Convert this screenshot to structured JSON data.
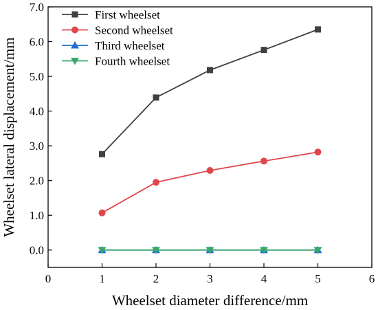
{
  "chart_data": {
    "type": "line",
    "title": "",
    "xlabel": "Wheelset diameter difference/mm",
    "ylabel": "Wheelset lateral displacement/mm",
    "xlim": [
      0,
      6
    ],
    "ylim": [
      -0.5,
      7.0
    ],
    "x_ticks": [
      0,
      1,
      2,
      3,
      4,
      5,
      6
    ],
    "x_tick_labels": [
      "0",
      "1",
      "2",
      "3",
      "4",
      "5",
      "6"
    ],
    "y_ticks": [
      0.0,
      1.0,
      2.0,
      3.0,
      4.0,
      5.0,
      6.0,
      7.0
    ],
    "y_tick_labels": [
      "0.0",
      "1.0",
      "2.0",
      "3.0",
      "4.0",
      "5.0",
      "6.0",
      "7.0"
    ],
    "grid": false,
    "legend_position": "top-left",
    "x": [
      1,
      2,
      3,
      4,
      5
    ],
    "series": [
      {
        "name": "First wheelset",
        "values": [
          2.76,
          4.39,
          5.18,
          5.76,
          6.35
        ],
        "color": "#404040",
        "marker": "square"
      },
      {
        "name": "Second wheelset",
        "values": [
          1.07,
          1.95,
          2.29,
          2.56,
          2.82
        ],
        "color": "#e0474c",
        "marker": "circle"
      },
      {
        "name": "Third wheelset",
        "values": [
          0.0,
          0.0,
          0.0,
          0.0,
          0.0
        ],
        "color": "#1f6fd0",
        "marker": "triangle-up"
      },
      {
        "name": "Fourth wheelset",
        "values": [
          0.0,
          0.0,
          0.0,
          0.0,
          0.0
        ],
        "color": "#3aa86a",
        "marker": "triangle-down"
      }
    ]
  }
}
